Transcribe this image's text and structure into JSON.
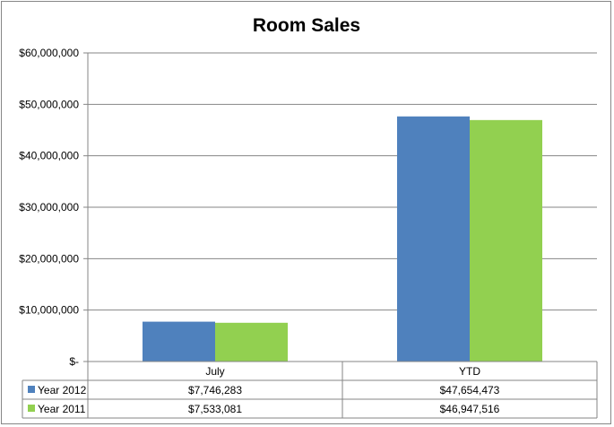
{
  "chart_data": {
    "type": "bar",
    "title": "Room Sales",
    "categories": [
      "July",
      "YTD"
    ],
    "series": [
      {
        "name": "Year 2012",
        "color": "#4F81BD",
        "values": [
          7746283,
          47654473
        ],
        "labels": [
          "$7,746,283",
          "$47,654,473"
        ]
      },
      {
        "name": "Year 2011",
        "color": "#92D050",
        "values": [
          7533081,
          46947516
        ],
        "labels": [
          "$7,533,081",
          "$46,947,516"
        ]
      }
    ],
    "ylim": [
      0,
      60000000
    ],
    "yticks": [
      0,
      10000000,
      20000000,
      30000000,
      40000000,
      50000000,
      60000000
    ],
    "ytick_labels": [
      "$-",
      "$10,000,000",
      "$20,000,000",
      "$30,000,000",
      "$40,000,000",
      "$50,000,000",
      "$60,000,000"
    ],
    "grid": true,
    "legend": "data-table-left"
  }
}
